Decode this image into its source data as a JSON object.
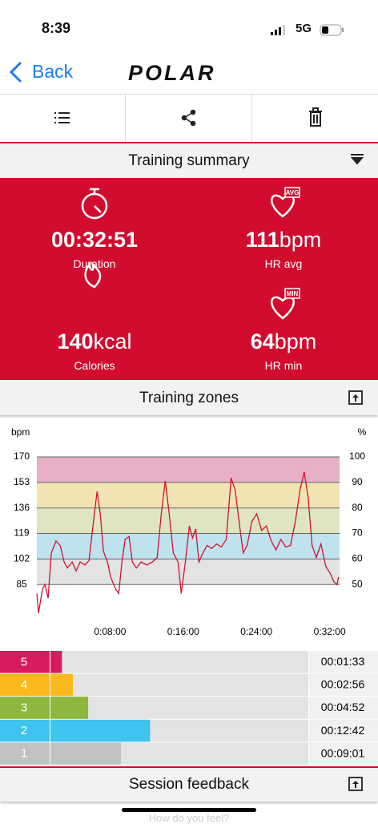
{
  "status_bar": {
    "time": "8:39",
    "network": "5G"
  },
  "nav": {
    "back": "Back",
    "logo": "POLAR"
  },
  "summary": {
    "title": "Training summary",
    "stats": [
      {
        "value": "00:32:51",
        "label": "Duration"
      },
      {
        "value": 111,
        "unit": "bpm",
        "label": "HR avg",
        "badge": "AVG"
      },
      {
        "value": 140,
        "unit": "kcal",
        "label": "Calories"
      },
      {
        "value": 64,
        "unit": "bpm",
        "label": "HR min",
        "badge": "MIN"
      }
    ]
  },
  "zones_title": "Training zones",
  "chart_data": [
    {
      "type": "line",
      "y_label": "bpm",
      "y2_label": "%",
      "xlim": [
        0,
        1985
      ],
      "xticks": [
        {
          "value": 480,
          "label": "0:08:00"
        },
        {
          "value": 960,
          "label": "0:16:00"
        },
        {
          "value": 1440,
          "label": "0:24:00"
        },
        {
          "value": 1920,
          "label": "0:32:00"
        }
      ],
      "ylim": [
        59.5,
        170
      ],
      "yticks": [
        85,
        102,
        119,
        136,
        153,
        170
      ],
      "y2lim": [
        35,
        100
      ],
      "y2ticks": [
        50,
        60,
        70,
        80,
        90,
        100
      ],
      "bands": [
        {
          "from": 85,
          "to": 102,
          "color": "#e3e3e3"
        },
        {
          "from": 102,
          "to": 119,
          "color": "#bfe2ef"
        },
        {
          "from": 119,
          "to": 136,
          "color": "#dfe5c0"
        },
        {
          "from": 136,
          "to": 153,
          "color": "#f2e4b2"
        },
        {
          "from": 153,
          "to": 170,
          "color": "#e8b0c6"
        }
      ],
      "series": [
        {
          "color": "#d4102f",
          "x": [
            0,
            11,
            37,
            53,
            74,
            95,
            126,
            153,
            179,
            200,
            232,
            258,
            284,
            316,
            342,
            368,
            395,
            416,
            437,
            463,
            484,
            516,
            537,
            558,
            579,
            605,
            626,
            653,
            684,
            721,
            758,
            789,
            816,
            842,
            868,
            895,
            926,
            947,
            974,
            1000,
            1021,
            1042,
            1063,
            1089,
            1116,
            1147,
            1179,
            1210,
            1242,
            1274,
            1300,
            1326,
            1353,
            1379,
            1410,
            1442,
            1474,
            1505,
            1537,
            1568,
            1600,
            1632,
            1663,
            1695,
            1726,
            1753,
            1779,
            1805,
            1832,
            1863,
            1895,
            1926,
            1947,
            1968,
            1979
          ],
          "values": [
            79,
            66,
            82,
            85,
            76,
            106,
            114,
            111,
            100,
            96,
            100,
            94,
            100,
            98,
            101,
            124,
            147,
            132,
            107,
            100,
            90,
            82,
            79,
            100,
            115,
            117,
            100,
            96,
            100,
            98,
            100,
            103,
            132,
            154,
            132,
            106,
            100,
            79,
            100,
            124,
            116,
            122,
            100,
            106,
            111,
            109,
            112,
            110,
            115,
            156,
            148,
            127,
            106,
            111,
            127,
            132,
            121,
            124,
            114,
            108,
            115,
            110,
            111,
            127,
            148,
            160,
            143,
            111,
            103,
            112,
            97,
            92,
            87,
            85,
            90
          ]
        }
      ]
    },
    {
      "type": "bar",
      "orientation": "horizontal",
      "categories": [
        "5",
        "4",
        "3",
        "2",
        "1"
      ],
      "colors": [
        "#d81b60",
        "#f9b81b",
        "#8db73d",
        "#3fc3ef",
        "#c2c2c2"
      ],
      "values": [
        93,
        176,
        292,
        762,
        541
      ],
      "value_labels": [
        "00:01:33",
        "00:02:56",
        "00:04:52",
        "00:12:42",
        "00:09:01"
      ],
      "xlim": [
        0,
        1963
      ]
    }
  ],
  "feedback": {
    "title": "Session feedback",
    "prompt": "How do you feel?"
  }
}
